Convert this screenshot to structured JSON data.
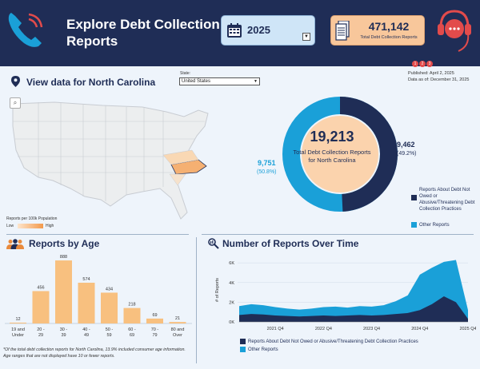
{
  "header": {
    "title": "Explore Debt Collection Reports",
    "year": "2025",
    "total_count": "471,142",
    "total_label": "Total Debt Collection Reports",
    "pager": [
      "1",
      "2",
      "3"
    ]
  },
  "map": {
    "title": "View data for North Carolina",
    "state_label": "State:",
    "state_value": "United States",
    "published": "Published: April 2, 2025",
    "data_as_of": "Data as of: December 31, 2025",
    "legend_title": "Reports per 100k Population",
    "legend_low": "Low",
    "legend_high": "High"
  },
  "donut": {
    "total": "19,213",
    "center_label": "Total Debt Collection Reports for North Carolina",
    "right_value": "9,462",
    "right_pct": "(49.2%)",
    "left_value": "9,751",
    "left_pct": "(50.8%)",
    "legend": [
      {
        "label": "Reports About Debt Not Owed or Abusive/Threatening Debt Collection Practices",
        "color": "#1f2d56"
      },
      {
        "label": "Other Reports",
        "color": "#1aa0d8"
      }
    ]
  },
  "age": {
    "title": "Reports by Age",
    "footnote": "*Of the total debt collection reports for North Carolina, 13.9% included consumer age information. Age ranges that are not displayed have 10 or fewer reports."
  },
  "time": {
    "title": "Number of Reports Over Time",
    "ylabel": "# of Reports",
    "legend": [
      {
        "label": "Reports About Debt Not Owed or Abusive/Threatening Debt Collection Practices",
        "color": "#1f2d56"
      },
      {
        "label": "Other Reports",
        "color": "#1aa0d8"
      }
    ]
  },
  "chart_data": [
    {
      "type": "bar",
      "title": "Reports by Age",
      "categories": [
        "19 and Under",
        "20 - 29",
        "30 - 39",
        "40 - 49",
        "50 - 59",
        "60 - 69",
        "70 - 79",
        "80 and Over"
      ],
      "values": [
        12,
        456,
        888,
        574,
        434,
        218,
        69,
        21
      ],
      "ylim": [
        0,
        900
      ],
      "color": "#f8c07f"
    },
    {
      "type": "area",
      "title": "Number of Reports Over Time",
      "ylabel": "# of Reports",
      "x": [
        "2021 Q1",
        "2021 Q2",
        "2021 Q3",
        "2021 Q4",
        "2022 Q1",
        "2022 Q2",
        "2022 Q3",
        "2022 Q4",
        "2023 Q1",
        "2023 Q2",
        "2023 Q3",
        "2023 Q4",
        "2024 Q1",
        "2024 Q2",
        "2024 Q3",
        "2024 Q4",
        "2025 Q1",
        "2025 Q2",
        "2025 Q3",
        "2025 Q4"
      ],
      "xticks": [
        "2021 Q4",
        "2022 Q4",
        "2023 Q4",
        "2024 Q4",
        "2025 Q4"
      ],
      "yticks": [
        "0K",
        "2K",
        "4K",
        "6K"
      ],
      "ylim": [
        0,
        6500
      ],
      "series": [
        {
          "name": "Reports About Debt Not Owed or Abusive/Threatening Debt Collection Practices",
          "values": [
            700,
            800,
            750,
            650,
            600,
            550,
            600,
            650,
            600,
            650,
            700,
            650,
            700,
            800,
            900,
            1200,
            1800,
            2600,
            2000,
            300
          ]
        },
        {
          "name": "Other Reports",
          "values": [
            900,
            1000,
            950,
            850,
            750,
            700,
            750,
            850,
            950,
            800,
            900,
            900,
            1000,
            1300,
            1800,
            3600,
            3700,
            3500,
            4300,
            900
          ]
        }
      ]
    }
  ]
}
